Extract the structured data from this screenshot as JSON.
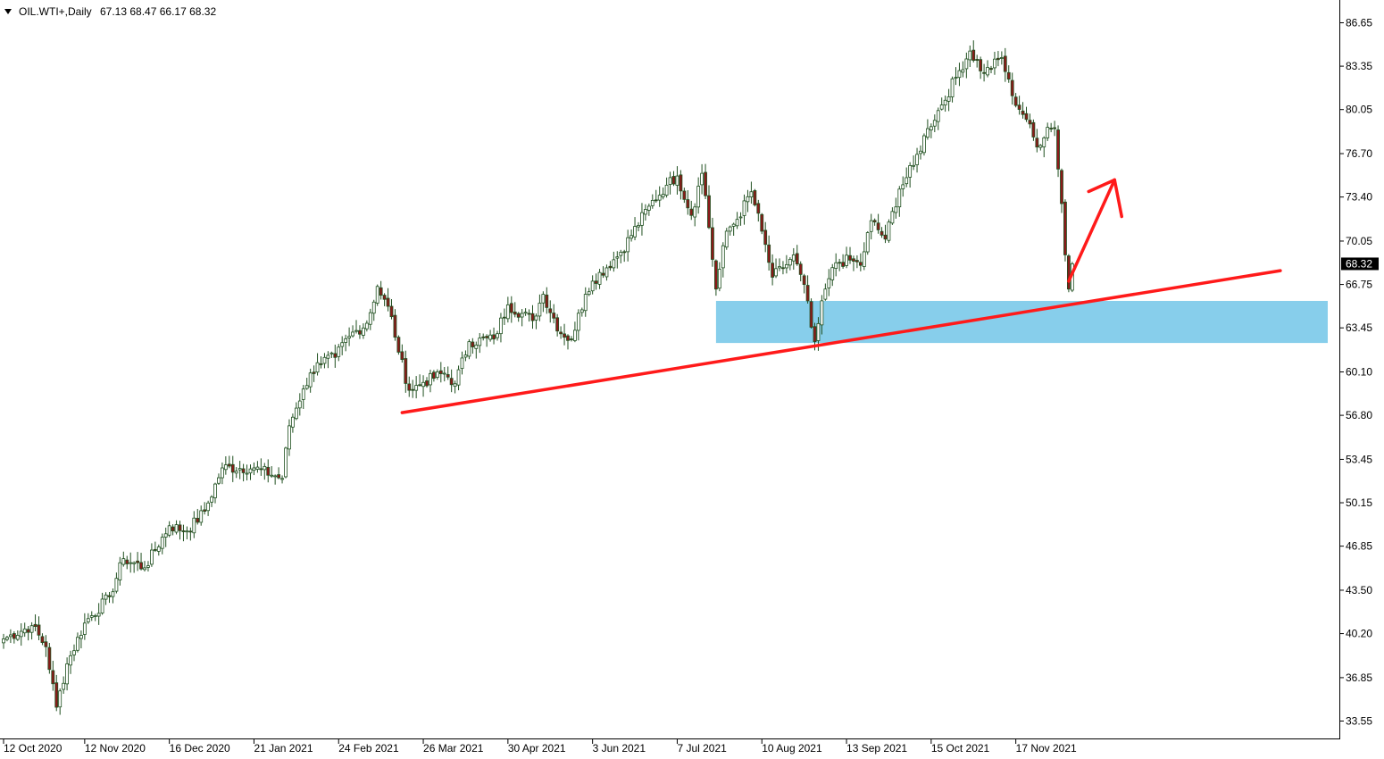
{
  "header": {
    "symbol": "OIL.WTI+,Daily",
    "ohlc": "67.13 68.47 66.17 68.32"
  },
  "chart_data": {
    "type": "candlestick",
    "symbol": "OIL.WTI+",
    "timeframe": "Daily",
    "last_price": "68.32",
    "ylim": [
      32.5,
      87.3
    ],
    "y_ticks": [
      "86.65",
      "83.35",
      "80.05",
      "76.70",
      "73.40",
      "70.05",
      "66.75",
      "63.45",
      "60.10",
      "56.80",
      "53.45",
      "50.15",
      "46.85",
      "43.50",
      "40.20",
      "36.85",
      "33.55"
    ],
    "x_ticks": [
      "12 Oct 2020",
      "12 Nov 2020",
      "16 Dec 2020",
      "21 Jan 2021",
      "24 Feb 2021",
      "26 Mar 2021",
      "30 Apr 2021",
      "3 Jun 2021",
      "7 Jul 2021",
      "10 Aug 2021",
      "13 Sep 2021",
      "15 Oct 2021",
      "17 Nov 2021"
    ],
    "x_tick_bar_index": [
      0,
      23,
      47,
      71,
      95,
      119,
      143,
      167,
      191,
      215,
      239,
      263,
      287
    ],
    "bar_count": 303,
    "close_waypoints": [
      [
        0,
        39.8
      ],
      [
        8,
        40.8
      ],
      [
        12,
        39.2
      ],
      [
        15,
        34.6
      ],
      [
        18,
        37.9
      ],
      [
        23,
        41.0
      ],
      [
        30,
        43.0
      ],
      [
        34,
        45.9
      ],
      [
        40,
        45.2
      ],
      [
        47,
        48.4
      ],
      [
        52,
        48.0
      ],
      [
        57,
        49.5
      ],
      [
        62,
        52.8
      ],
      [
        71,
        52.8
      ],
      [
        79,
        52.0
      ],
      [
        81,
        56.0
      ],
      [
        85,
        58.8
      ],
      [
        89,
        60.8
      ],
      [
        94,
        61.2
      ],
      [
        98,
        62.8
      ],
      [
        103,
        63.8
      ],
      [
        106,
        66.6
      ],
      [
        110,
        64.3
      ],
      [
        112,
        61.6
      ],
      [
        115,
        58.7
      ],
      [
        119,
        59.3
      ],
      [
        125,
        60.0
      ],
      [
        128,
        59.2
      ],
      [
        132,
        62.4
      ],
      [
        139,
        62.6
      ],
      [
        143,
        65.2
      ],
      [
        150,
        64.0
      ],
      [
        153,
        66.0
      ],
      [
        158,
        63.0
      ],
      [
        161,
        62.6
      ],
      [
        165,
        66.0
      ],
      [
        167,
        67.0
      ],
      [
        175,
        69.2
      ],
      [
        183,
        72.7
      ],
      [
        188,
        74.3
      ],
      [
        191,
        75.0
      ],
      [
        195,
        72.0
      ],
      [
        198,
        75.2
      ],
      [
        199,
        73.5
      ],
      [
        202,
        66.4
      ],
      [
        205,
        70.8
      ],
      [
        208,
        71.7
      ],
      [
        212,
        73.8
      ],
      [
        215,
        70.8
      ],
      [
        218,
        67.3
      ],
      [
        221,
        68.0
      ],
      [
        224,
        69.0
      ],
      [
        228,
        65.5
      ],
      [
        229,
        63.5
      ],
      [
        230,
        62.4
      ],
      [
        233,
        66.4
      ],
      [
        236,
        68.4
      ],
      [
        240,
        68.6
      ],
      [
        243,
        68.2
      ],
      [
        246,
        71.6
      ],
      [
        250,
        70.2
      ],
      [
        254,
        74.0
      ],
      [
        258,
        75.8
      ],
      [
        262,
        78.6
      ],
      [
        266,
        80.4
      ],
      [
        270,
        82.5
      ],
      [
        274,
        84.5
      ],
      [
        278,
        82.8
      ],
      [
        283,
        84.0
      ],
      [
        286,
        81.1
      ],
      [
        290,
        79.3
      ],
      [
        293,
        77.2
      ],
      [
        296,
        78.7
      ],
      [
        298,
        78.6
      ],
      [
        300,
        72.9
      ],
      [
        301,
        69.0
      ],
      [
        302,
        66.4
      ],
      [
        303,
        68.32
      ]
    ],
    "annotations": {
      "support_zone": {
        "price_low": 62.3,
        "price_high": 65.5,
        "from_bar": 202
      },
      "trendline": {
        "from": [
          113,
          57.0
        ],
        "to": [
          362,
          67.8
        ]
      },
      "arrow": {
        "from": [
          302,
          67.0
        ],
        "to": [
          315,
          74.7
        ]
      }
    },
    "colors": {
      "bull_body": "#ffffff",
      "bear_body": "#8b1a1a",
      "wick": "#1f4f1f",
      "trendline": "#ff1a1a",
      "zone": "#87ceeb",
      "price_tag_bg": "#000000",
      "axis": "#000000"
    }
  }
}
